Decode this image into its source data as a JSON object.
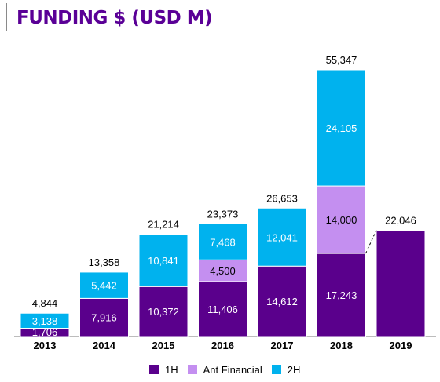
{
  "chart_data": {
    "type": "bar",
    "stacked": true,
    "title": "FUNDING $ (USD M)",
    "categories": [
      "2013",
      "2014",
      "2015",
      "2016",
      "2017",
      "2018",
      "2019"
    ],
    "series": [
      {
        "name": "1H",
        "color": "#5a008c",
        "values": [
          1706,
          7916,
          10372,
          11406,
          14612,
          17243,
          22046
        ]
      },
      {
        "name": "Ant Financial",
        "color": "#c48ff0",
        "values": [
          0,
          0,
          0,
          4500,
          0,
          14000,
          0
        ]
      },
      {
        "name": "2H",
        "color": "#00b2ee",
        "values": [
          3138,
          5442,
          10841,
          7468,
          12041,
          24105,
          0
        ]
      }
    ],
    "value_labels": [
      [
        "1,706",
        "7,916",
        "10,372",
        "11,406",
        "14,612",
        "17,243",
        ""
      ],
      [
        "",
        "",
        "",
        "4,500",
        "",
        "14,000",
        ""
      ],
      [
        "3,138",
        "5,442",
        "10,841",
        "7,468",
        "12,041",
        "24,105",
        ""
      ]
    ],
    "totals": [
      4844,
      13358,
      21214,
      23373,
      26653,
      55347,
      22046
    ],
    "total_labels": [
      "4,844",
      "13,358",
      "21,214",
      "23,373",
      "26,653",
      "55,347",
      "22,046"
    ],
    "ylim": [
      0,
      55347
    ],
    "legend_position": "bottom",
    "connector": {
      "from": "2018",
      "to": "2019",
      "style": "dashed"
    }
  }
}
